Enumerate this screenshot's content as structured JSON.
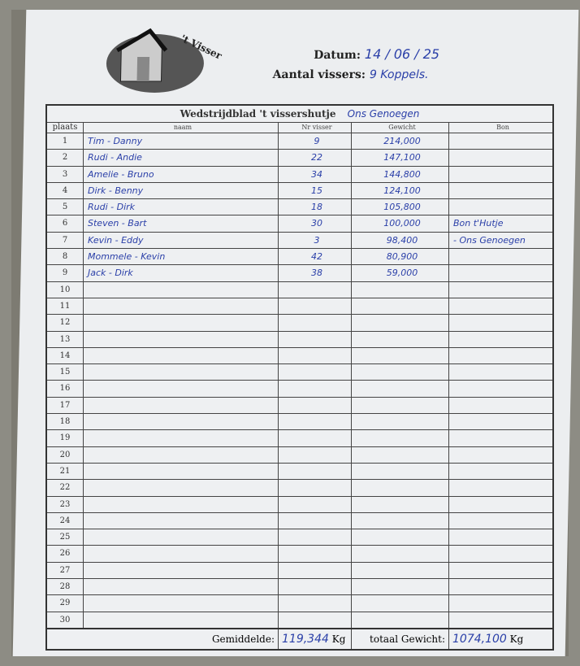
{
  "header": {
    "logo_text": "'t Vissershutje",
    "datum_label": "Datum:",
    "datum_value": "14 / 06 / 25",
    "aantal_label": "Aantal vissers:",
    "aantal_value": "9 Koppels."
  },
  "table": {
    "title": "Wedstrijdblad 't vissershutje",
    "title_note": "Ons Genoegen",
    "columns": [
      "plaats",
      "naam",
      "Nr visser",
      "Gewicht",
      "Bon"
    ],
    "rows": [
      {
        "place": "1",
        "name": "Tim - Danny",
        "nr": "9",
        "weight": "214,000",
        "bon": ""
      },
      {
        "place": "2",
        "name": "Rudi - Andie",
        "nr": "22",
        "weight": "147,100",
        "bon": ""
      },
      {
        "place": "3",
        "name": "Amelie - Bruno",
        "nr": "34",
        "weight": "144,800",
        "bon": ""
      },
      {
        "place": "4",
        "name": "Dirk - Benny",
        "nr": "15",
        "weight": "124,100",
        "bon": ""
      },
      {
        "place": "5",
        "name": "Rudi - Dirk",
        "nr": "18",
        "weight": "105,800",
        "bon": ""
      },
      {
        "place": "6",
        "name": "Steven - Bart",
        "nr": "30",
        "weight": "100,000",
        "bon": "Bon t'Hutje"
      },
      {
        "place": "7",
        "name": "Kevin - Eddy",
        "nr": "3",
        "weight": "98,400",
        "bon": "- Ons Genoegen"
      },
      {
        "place": "8",
        "name": "Mommele - Kevin",
        "nr": "42",
        "weight": "80,900",
        "bon": ""
      },
      {
        "place": "9",
        "name": "Jack - Dirk",
        "nr": "38",
        "weight": "59,000",
        "bon": ""
      },
      {
        "place": "10"
      },
      {
        "place": "11"
      },
      {
        "place": "12"
      },
      {
        "place": "13"
      },
      {
        "place": "14"
      },
      {
        "place": "15"
      },
      {
        "place": "16"
      },
      {
        "place": "17"
      },
      {
        "place": "18"
      },
      {
        "place": "19"
      },
      {
        "place": "20"
      },
      {
        "place": "21"
      },
      {
        "place": "22"
      },
      {
        "place": "23"
      },
      {
        "place": "24"
      },
      {
        "place": "25"
      },
      {
        "place": "26"
      },
      {
        "place": "27"
      },
      {
        "place": "28"
      },
      {
        "place": "29"
      },
      {
        "place": "30"
      }
    ],
    "footer": {
      "avg_label": "Gemiddelde:",
      "avg_value": "119,344",
      "unit": "Kg",
      "total_label": "totaal Gewicht:",
      "total_value": "1074,100"
    }
  },
  "colors": {
    "ink": "#2a3fa8",
    "paper": "#eceef0"
  }
}
